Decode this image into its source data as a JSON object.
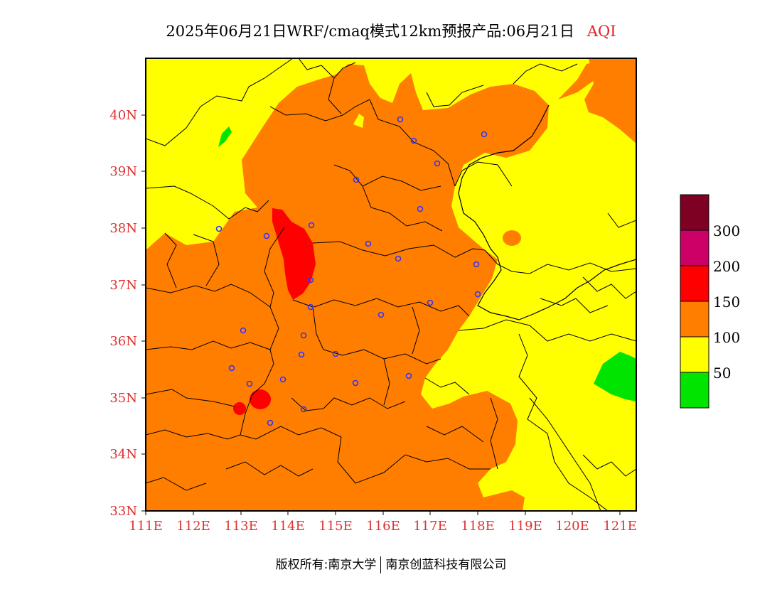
{
  "title": {
    "main": "2025年06月21日WRF/cmaq模式12km预报产品:06月21日",
    "variable": "AQI"
  },
  "map": {
    "lat_ticks": [
      "40N",
      "39N",
      "38N",
      "37N",
      "36N",
      "35N",
      "34N",
      "33N"
    ],
    "lon_ticks": [
      "111E",
      "112E",
      "113E",
      "114E",
      "115E",
      "116E",
      "117E",
      "118E",
      "119E",
      "120E",
      "121E"
    ],
    "extent": {
      "lon_min": 111,
      "lon_max": 121.35,
      "lat_min": 33,
      "lat_max": 41
    },
    "aqi_colors": {
      "good": "#00e400",
      "moderate": "#ffff00",
      "usg": "#ff7e00",
      "unhealthy": "#ff0000",
      "very_unhealthy": "#cc0066",
      "hazardous": "#7e0023"
    },
    "city_marker_color": "#3333ff"
  },
  "legend": {
    "labels": [
      "300",
      "200",
      "150",
      "100",
      "50"
    ]
  },
  "footer": {
    "copyright": "版权所有:南京大学",
    "company": "南京创蓝科技有限公司"
  }
}
